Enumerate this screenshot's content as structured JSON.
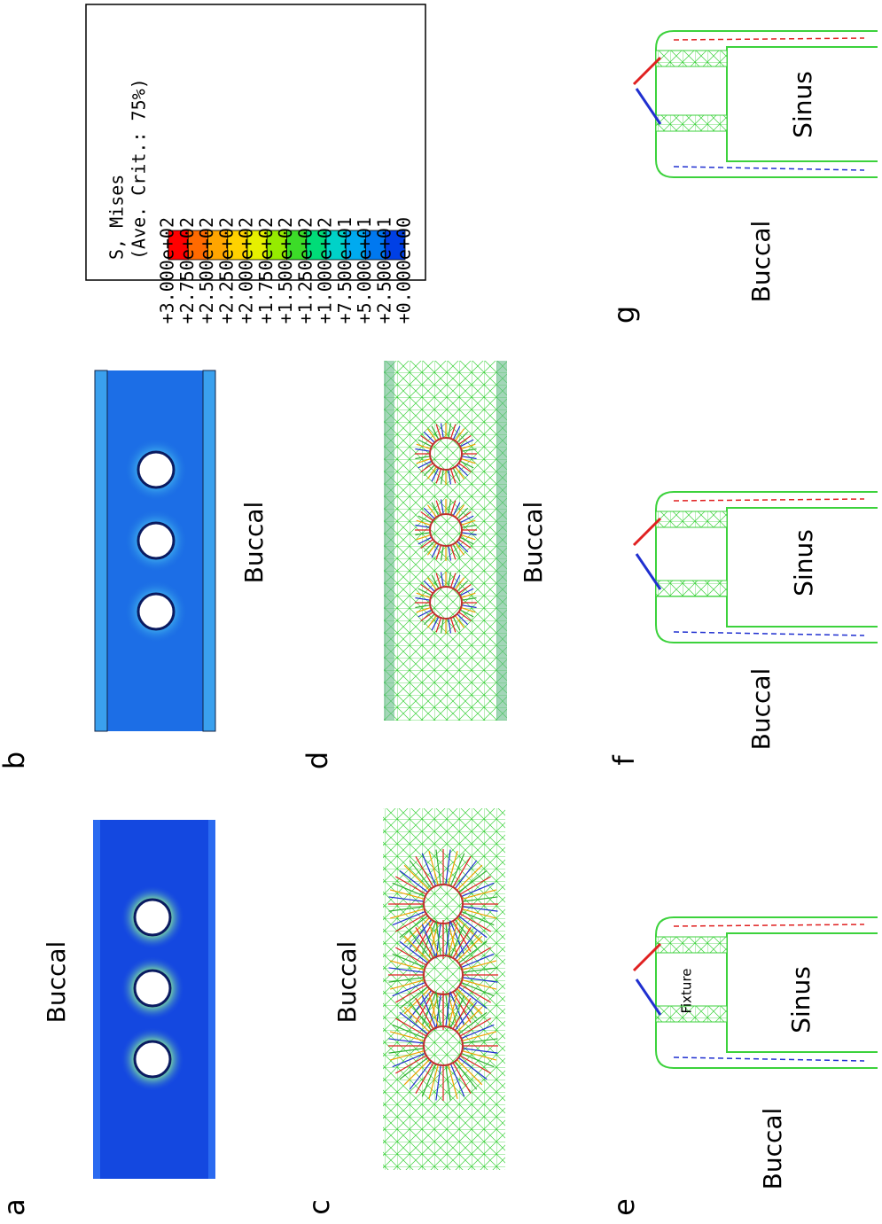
{
  "panels": [
    {
      "letter": "a",
      "labels": [
        "Buccal"
      ]
    },
    {
      "letter": "b",
      "labels": [
        "Buccal"
      ]
    },
    {
      "letter": "c",
      "labels": [
        "Buccal"
      ]
    },
    {
      "letter": "d",
      "labels": [
        "Buccal"
      ]
    },
    {
      "letter": "e",
      "labels": [
        "Buccal",
        "Sinus",
        "Fixture"
      ]
    },
    {
      "letter": "f",
      "labels": [
        "Buccal",
        "Sinus"
      ]
    },
    {
      "letter": "g",
      "labels": [
        "Buccal",
        "Sinus"
      ]
    }
  ],
  "legend": {
    "title": "S, Mises",
    "subtitle": "(Ave. Crit.: 75%)",
    "values": [
      "+3.000e+02",
      "+2.750e+02",
      "+2.500e+02",
      "+2.250e+02",
      "+2.000e+02",
      "+1.750e+02",
      "+1.500e+02",
      "+1.250e+02",
      "+1.000e+02",
      "+7.500e+01",
      "+5.000e+01",
      "+2.500e+01",
      "+0.000e+00"
    ]
  }
}
